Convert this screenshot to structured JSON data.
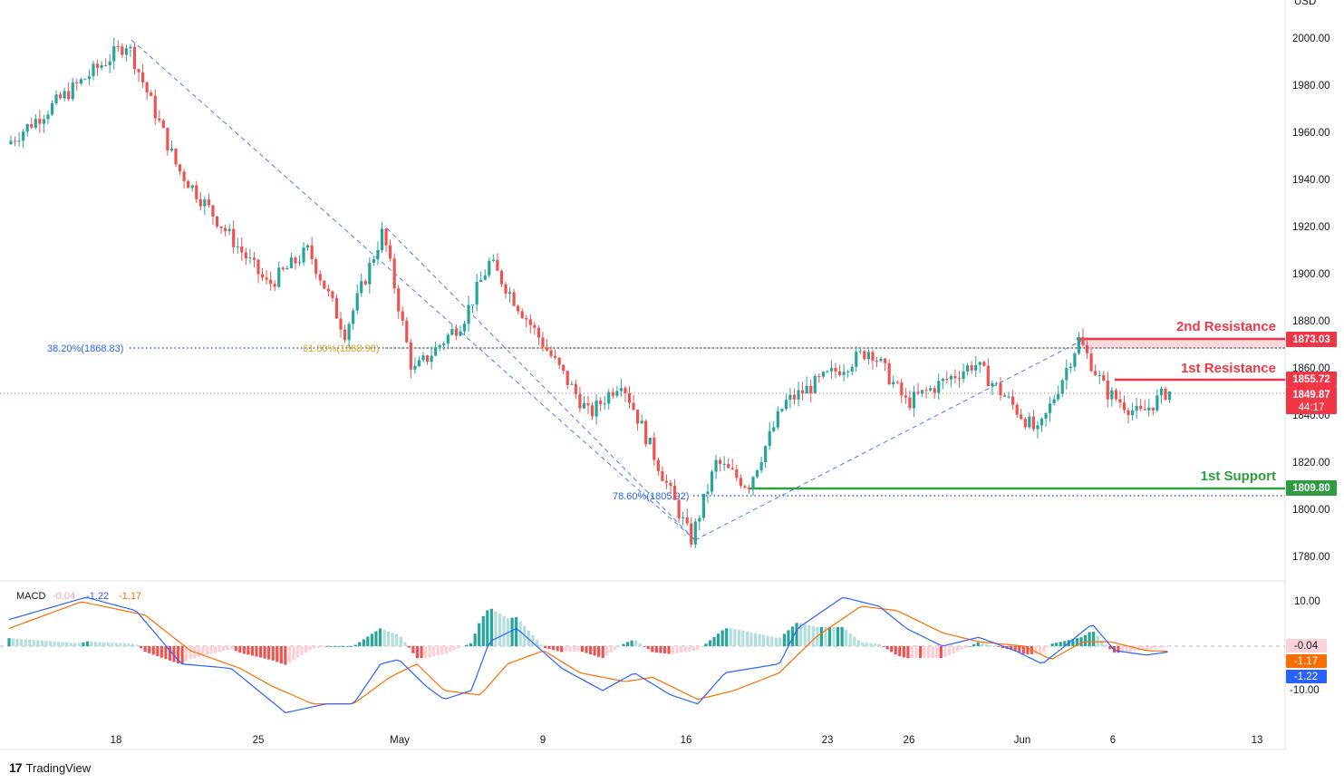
{
  "symbol_currency": "USD",
  "price_axis": {
    "ticks": [
      "2000.00",
      "1980.00",
      "1960.00",
      "1940.00",
      "1920.00",
      "1900.00",
      "1880.00",
      "1860.00",
      "1840.00",
      "1820.00",
      "1800.00",
      "1780.00"
    ]
  },
  "macd_axis": {
    "ticks": [
      "10.00",
      "-10.00"
    ]
  },
  "time_axis": {
    "ticks": [
      "18",
      "25",
      "May",
      "9",
      "16",
      "23",
      "26",
      "Jun",
      "6",
      "13"
    ]
  },
  "levels": {
    "resistance2": {
      "label": "2nd Resistance",
      "value": "1873.03",
      "color": "#f23645"
    },
    "resistance1": {
      "label": "1st Resistance",
      "value": "1855.72",
      "color": "#f23645"
    },
    "support1": {
      "label": "1st Support",
      "value": "1809.80",
      "color": "#2e9d3f"
    },
    "current_price": {
      "value": "1849.87",
      "countdown": "44:17",
      "color": "#f23645"
    }
  },
  "fib_labels": {
    "fib_382": "38.20%(1868.83)",
    "fib_618": "61.80%(1868.98)",
    "fib_786": "78.60%(1805.92)"
  },
  "macd_legend": {
    "name": "MACD",
    "hist": "-0.04",
    "macd": "-1.22",
    "signal": "-1.17"
  },
  "macd_badges": {
    "hist": "-0.04",
    "signal": "-1.17",
    "macd": "-1.22"
  },
  "colors": {
    "up": "#26a69a",
    "down": "#ef5350",
    "macd_line": "#2962ff",
    "signal_line": "#ff6d00"
  },
  "brand": {
    "logo": "17",
    "name": "TradingView"
  },
  "chart_data": {
    "type": "candlestick",
    "x_ticks": [
      "18",
      "25",
      "May",
      "9",
      "16",
      "23",
      "26",
      "Jun",
      "6",
      "13"
    ],
    "y_range": [
      1770,
      2008
    ],
    "anchors": [
      {
        "x": "start",
        "y": 1955
      },
      {
        "x": "near 18",
        "y": 1998
      },
      {
        "x": "~22",
        "y": 1945
      },
      {
        "x": "~27",
        "y": 1895
      },
      {
        "x": "~29",
        "y": 1910
      },
      {
        "x": "~1 May",
        "y": 1875
      },
      {
        "x": "May",
        "y": 1918
      },
      {
        "x": "~4 May",
        "y": 1858
      },
      {
        "x": "~7 May",
        "y": 1880
      },
      {
        "x": "~8 May",
        "y": 1905
      },
      {
        "x": "~12 May",
        "y": 1840
      },
      {
        "x": "~13 May",
        "y": 1855
      },
      {
        "x": "16",
        "y": 1787
      },
      {
        "x": "~18 May",
        "y": 1820
      },
      {
        "x": "~20 May",
        "y": 1810
      },
      {
        "x": "~21 May",
        "y": 1845
      },
      {
        "x": "24",
        "y": 1868
      },
      {
        "x": "26",
        "y": 1845
      },
      {
        "x": "~29 May",
        "y": 1862
      },
      {
        "x": "~31 May",
        "y": 1845
      },
      {
        "x": "~1 Jun",
        "y": 1832
      },
      {
        "x": "~3 Jun",
        "y": 1872
      },
      {
        "x": "~5 Jun",
        "y": 1850
      },
      {
        "x": "~7 Jun",
        "y": 1840
      },
      {
        "x": "~8 Jun",
        "y": 1850
      }
    ],
    "levels": {
      "resistance_2": 1873.03,
      "resistance_1": 1855.72,
      "support_1": 1809.8,
      "last_price": 1849.87
    },
    "fibonacci": {
      "38.20%": 1868.83,
      "61.80%": 1868.98,
      "78.60%": 1805.92
    },
    "macd": {
      "hist": -0.04,
      "macd": -1.22,
      "signal": -1.17,
      "y_ticks": [
        10,
        -10
      ]
    }
  }
}
